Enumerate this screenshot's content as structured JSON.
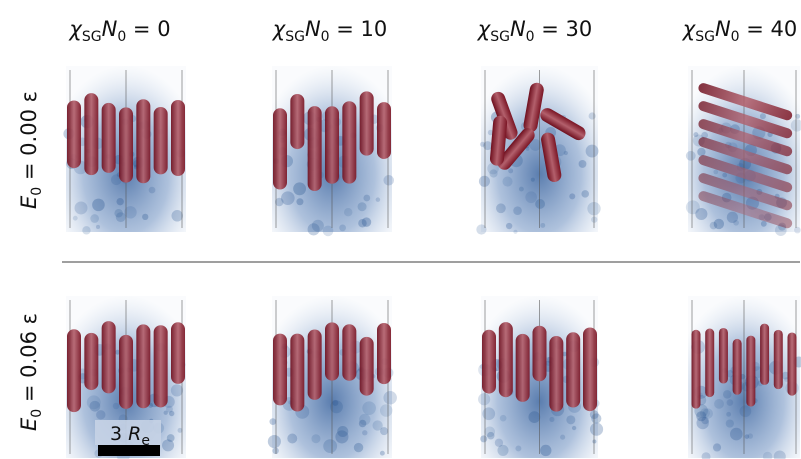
{
  "columns": [
    {
      "parts": [
        "χ",
        "SG",
        "N",
        "0",
        " = 0"
      ]
    },
    {
      "parts": [
        "χ",
        "SG",
        "N",
        "0",
        " = 10"
      ]
    },
    {
      "parts": [
        "χ",
        "SG",
        "N",
        "0",
        " = 30"
      ]
    },
    {
      "parts": [
        "χ",
        "SG",
        "N",
        "0",
        " = 40"
      ]
    }
  ],
  "rows": [
    {
      "parts": [
        "E",
        "0",
        " = 0.00 ε"
      ]
    },
    {
      "parts": [
        "E",
        "0",
        " = 0.06 ε"
      ]
    }
  ],
  "scale_bar": {
    "parts": [
      "3 ",
      "R",
      "e"
    ]
  }
}
